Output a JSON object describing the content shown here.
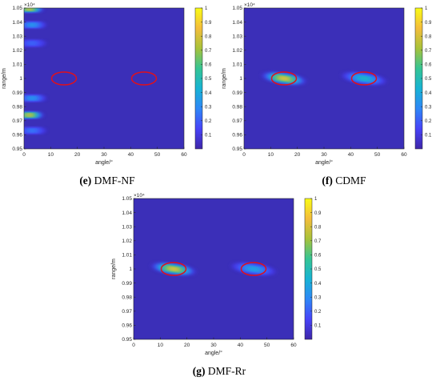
{
  "figure_colors": {
    "background": "#3b2fb8",
    "target_ellipse": "#e0101c",
    "colormap": [
      "#3e26a8",
      "#4743f8",
      "#2e87f7",
      "#17b3d4",
      "#35c594",
      "#a8c23a",
      "#f4bd3b",
      "#f9fb15"
    ]
  },
  "chart_data": [
    {
      "type": "heatmap",
      "caption_letter": "(e)",
      "caption_text": "DMF-NF",
      "xlabel": "angle/°",
      "ylabel": "range/m",
      "y_exponent": "×10⁴",
      "xlim": [
        0,
        60
      ],
      "ylim": [
        0.95,
        1.05
      ],
      "x_ticks": [
        "0",
        "10",
        "20",
        "30",
        "40",
        "50",
        "60"
      ],
      "y_ticks": [
        "0.95",
        "0.96",
        "0.97",
        "0.98",
        "0.99",
        "1",
        "1.01",
        "1.02",
        "1.03",
        "1.04",
        "1.05"
      ],
      "colorbar": {
        "range": [
          0,
          1
        ],
        "ticks": [
          "0.1",
          "0.2",
          "0.3",
          "0.4",
          "0.5",
          "0.6",
          "0.7",
          "0.8",
          "0.9",
          "1"
        ]
      },
      "peaks": [
        {
          "angle": 2,
          "range": 1.0493,
          "value": 0.95
        },
        {
          "angle": 2,
          "range": 0.974,
          "value": 0.95
        },
        {
          "angle": 3,
          "range": 1.038,
          "value": 0.4
        },
        {
          "angle": 3,
          "range": 0.986,
          "value": 0.4
        },
        {
          "angle": 3,
          "range": 1.025,
          "value": 0.25
        },
        {
          "angle": 3,
          "range": 0.963,
          "value": 0.3
        }
      ],
      "targets": [
        {
          "angle": 15,
          "range": 1.0
        },
        {
          "angle": 45,
          "range": 1.0
        }
      ]
    },
    {
      "type": "heatmap",
      "caption_letter": "(f)",
      "caption_text": "CDMF",
      "xlabel": "angle/°",
      "ylabel": "range/m",
      "y_exponent": "×10⁴",
      "xlim": [
        0,
        60
      ],
      "ylim": [
        0.95,
        1.05
      ],
      "x_ticks": [
        "0",
        "10",
        "20",
        "30",
        "40",
        "50",
        "60"
      ],
      "y_ticks": [
        "0.95",
        "0.96",
        "0.97",
        "0.98",
        "0.99",
        "1",
        "1.01",
        "1.02",
        "1.03",
        "1.04",
        "1.05"
      ],
      "colorbar": {
        "range": [
          0,
          1
        ],
        "ticks": [
          "0.1",
          "0.2",
          "0.3",
          "0.4",
          "0.5",
          "0.6",
          "0.7",
          "0.8",
          "0.9",
          "1"
        ]
      },
      "peaks": [
        {
          "angle": 15,
          "range": 1.0,
          "value": 1.0
        },
        {
          "angle": 45,
          "range": 1.0,
          "value": 0.55
        }
      ],
      "targets": [
        {
          "angle": 15,
          "range": 1.0
        },
        {
          "angle": 45,
          "range": 1.0
        }
      ]
    },
    {
      "type": "heatmap",
      "caption_letter": "(g)",
      "caption_text": "DMF-Rr",
      "xlabel": "angle/°",
      "ylabel": "range/m",
      "y_exponent": "×10⁴",
      "xlim": [
        0,
        60
      ],
      "ylim": [
        0.95,
        1.05
      ],
      "x_ticks": [
        "0",
        "10",
        "20",
        "30",
        "40",
        "50",
        "60"
      ],
      "y_ticks": [
        "0.95",
        "0.96",
        "0.97",
        "0.98",
        "0.99",
        "1",
        "1.01",
        "1.02",
        "1.03",
        "1.04",
        "1.05"
      ],
      "colorbar": {
        "range": [
          0,
          1
        ],
        "ticks": [
          "0.1",
          "0.2",
          "0.3",
          "0.4",
          "0.5",
          "0.6",
          "0.7",
          "0.8",
          "0.9",
          "1"
        ]
      },
      "peaks": [
        {
          "angle": 15,
          "range": 1.0,
          "value": 1.0
        },
        {
          "angle": 45,
          "range": 1.0,
          "value": 0.45
        }
      ],
      "targets": [
        {
          "angle": 15,
          "range": 1.0
        },
        {
          "angle": 45,
          "range": 1.0
        }
      ]
    }
  ]
}
